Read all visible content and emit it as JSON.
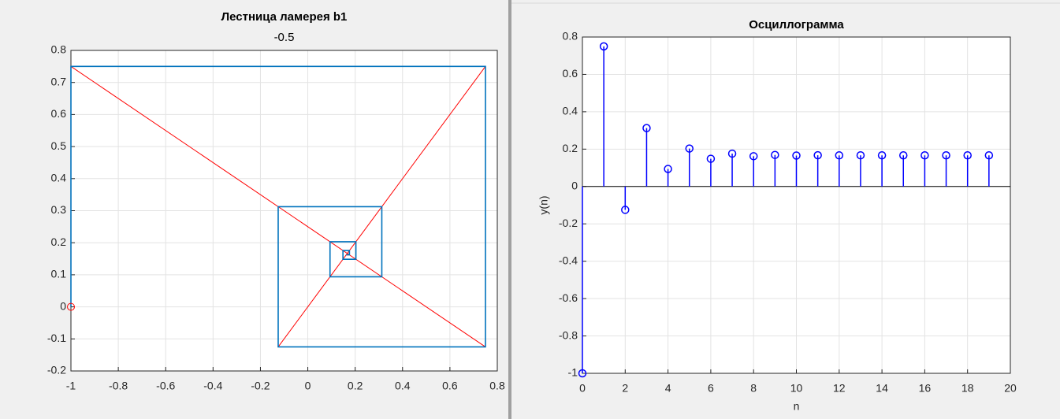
{
  "chart_data": [
    {
      "type": "line",
      "title": "Лестница ламерея b1",
      "subtitle": "-0.5",
      "xlim": [
        -1,
        0.8
      ],
      "ylim": [
        -0.2,
        0.8
      ],
      "xticks": [
        -1,
        -0.8,
        -0.6,
        -0.4,
        -0.2,
        0,
        0.2,
        0.4,
        0.6,
        0.8
      ],
      "yticks": [
        -0.2,
        -0.1,
        0,
        0.1,
        0.2,
        0.3,
        0.4,
        0.5,
        0.6,
        0.7,
        0.8
      ],
      "grid": true,
      "series": [
        {
          "color": "#ff0000",
          "x": [
            -1,
            0.75
          ],
          "values": [
            0.75,
            -0.125
          ]
        },
        {
          "color": "#ff0000",
          "x": [
            -0.125,
            0.75
          ],
          "values": [
            -0.125,
            0.75
          ]
        },
        {
          "color": "#0072bd",
          "x": [
            -1,
            -1,
            0.75,
            0.75,
            -0.125,
            -0.125,
            0.3125,
            0.3125,
            0.0938,
            0.0938,
            0.2031,
            0.2031,
            0.1484,
            0.1484,
            0.1758,
            0.1758,
            0.1621
          ],
          "values": [
            0,
            0.75,
            0.75,
            -0.125,
            -0.125,
            0.3125,
            0.3125,
            0.0938,
            0.0938,
            0.2031,
            0.2031,
            0.1484,
            0.1484,
            0.1758,
            0.1758,
            0.1621,
            0.1621
          ]
        },
        {
          "color": "#ff0000",
          "marker": "circle",
          "x": [
            -1
          ],
          "values": [
            0
          ]
        }
      ]
    },
    {
      "type": "stem",
      "title": "Осциллограмма",
      "xlabel": "n",
      "ylabel": "y(n)",
      "xlim": [
        0,
        20
      ],
      "ylim": [
        -1,
        0.8
      ],
      "xticks": [
        0,
        2,
        4,
        6,
        8,
        10,
        12,
        14,
        16,
        18,
        20
      ],
      "yticks": [
        -1,
        -0.8,
        -0.6,
        -0.4,
        -0.2,
        0,
        0.2,
        0.4,
        0.6,
        0.8
      ],
      "grid": true,
      "color": "#0000ff",
      "x": [
        0,
        1,
        2,
        3,
        4,
        5,
        6,
        7,
        8,
        9,
        10,
        11,
        12,
        13,
        14,
        15,
        16,
        17,
        18,
        19
      ],
      "values": [
        -1,
        0.75,
        -0.125,
        0.3125,
        0.0938,
        0.2031,
        0.1484,
        0.1758,
        0.1621,
        0.1689,
        0.1655,
        0.1672,
        0.1664,
        0.1668,
        0.1666,
        0.1667,
        0.1667,
        0.1667,
        0.1667,
        0.1667
      ]
    }
  ]
}
